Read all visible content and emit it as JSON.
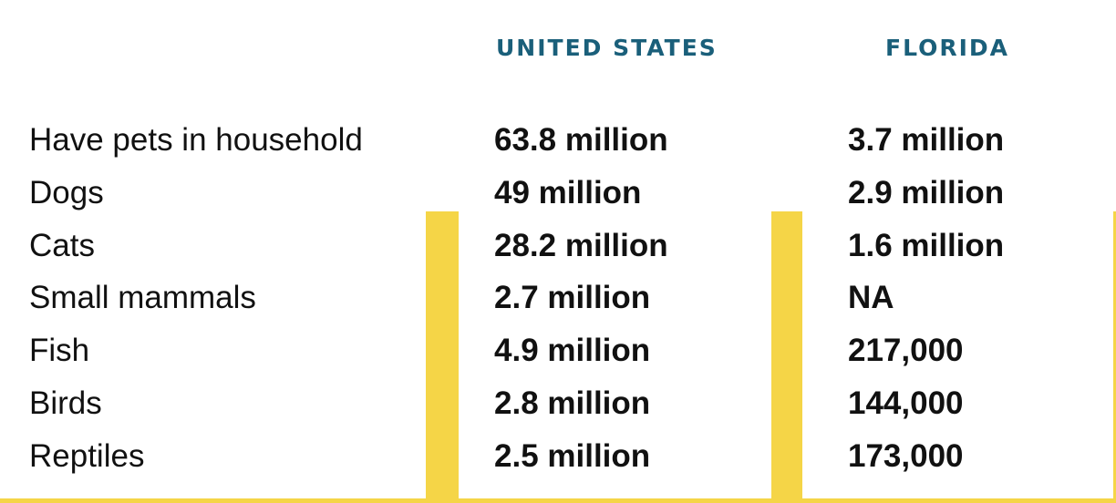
{
  "headers": {
    "united_states": "UNITED STATES",
    "florida": "FLORIDA"
  },
  "rows": [
    {
      "label": "Have pets in household",
      "united_states": "63.8 million",
      "florida": "3.7 million"
    },
    {
      "label": "Dogs",
      "united_states": "49 million",
      "florida": "2.9 million"
    },
    {
      "label": "Cats",
      "united_states": "28.2 million",
      "florida": "1.6 million"
    },
    {
      "label": "Small mammals",
      "united_states": "2.7 million",
      "florida": "NA"
    },
    {
      "label": "Fish",
      "united_states": "4.9 million",
      "florida": "217,000"
    },
    {
      "label": "Birds",
      "united_states": "2.8 million",
      "florida": "144,000"
    },
    {
      "label": "Reptiles",
      "united_states": "2.5 million",
      "florida": "173,000"
    }
  ],
  "colors": {
    "header": "#1a5f7a",
    "accent_bar": "#f5d547",
    "text": "#111111"
  }
}
